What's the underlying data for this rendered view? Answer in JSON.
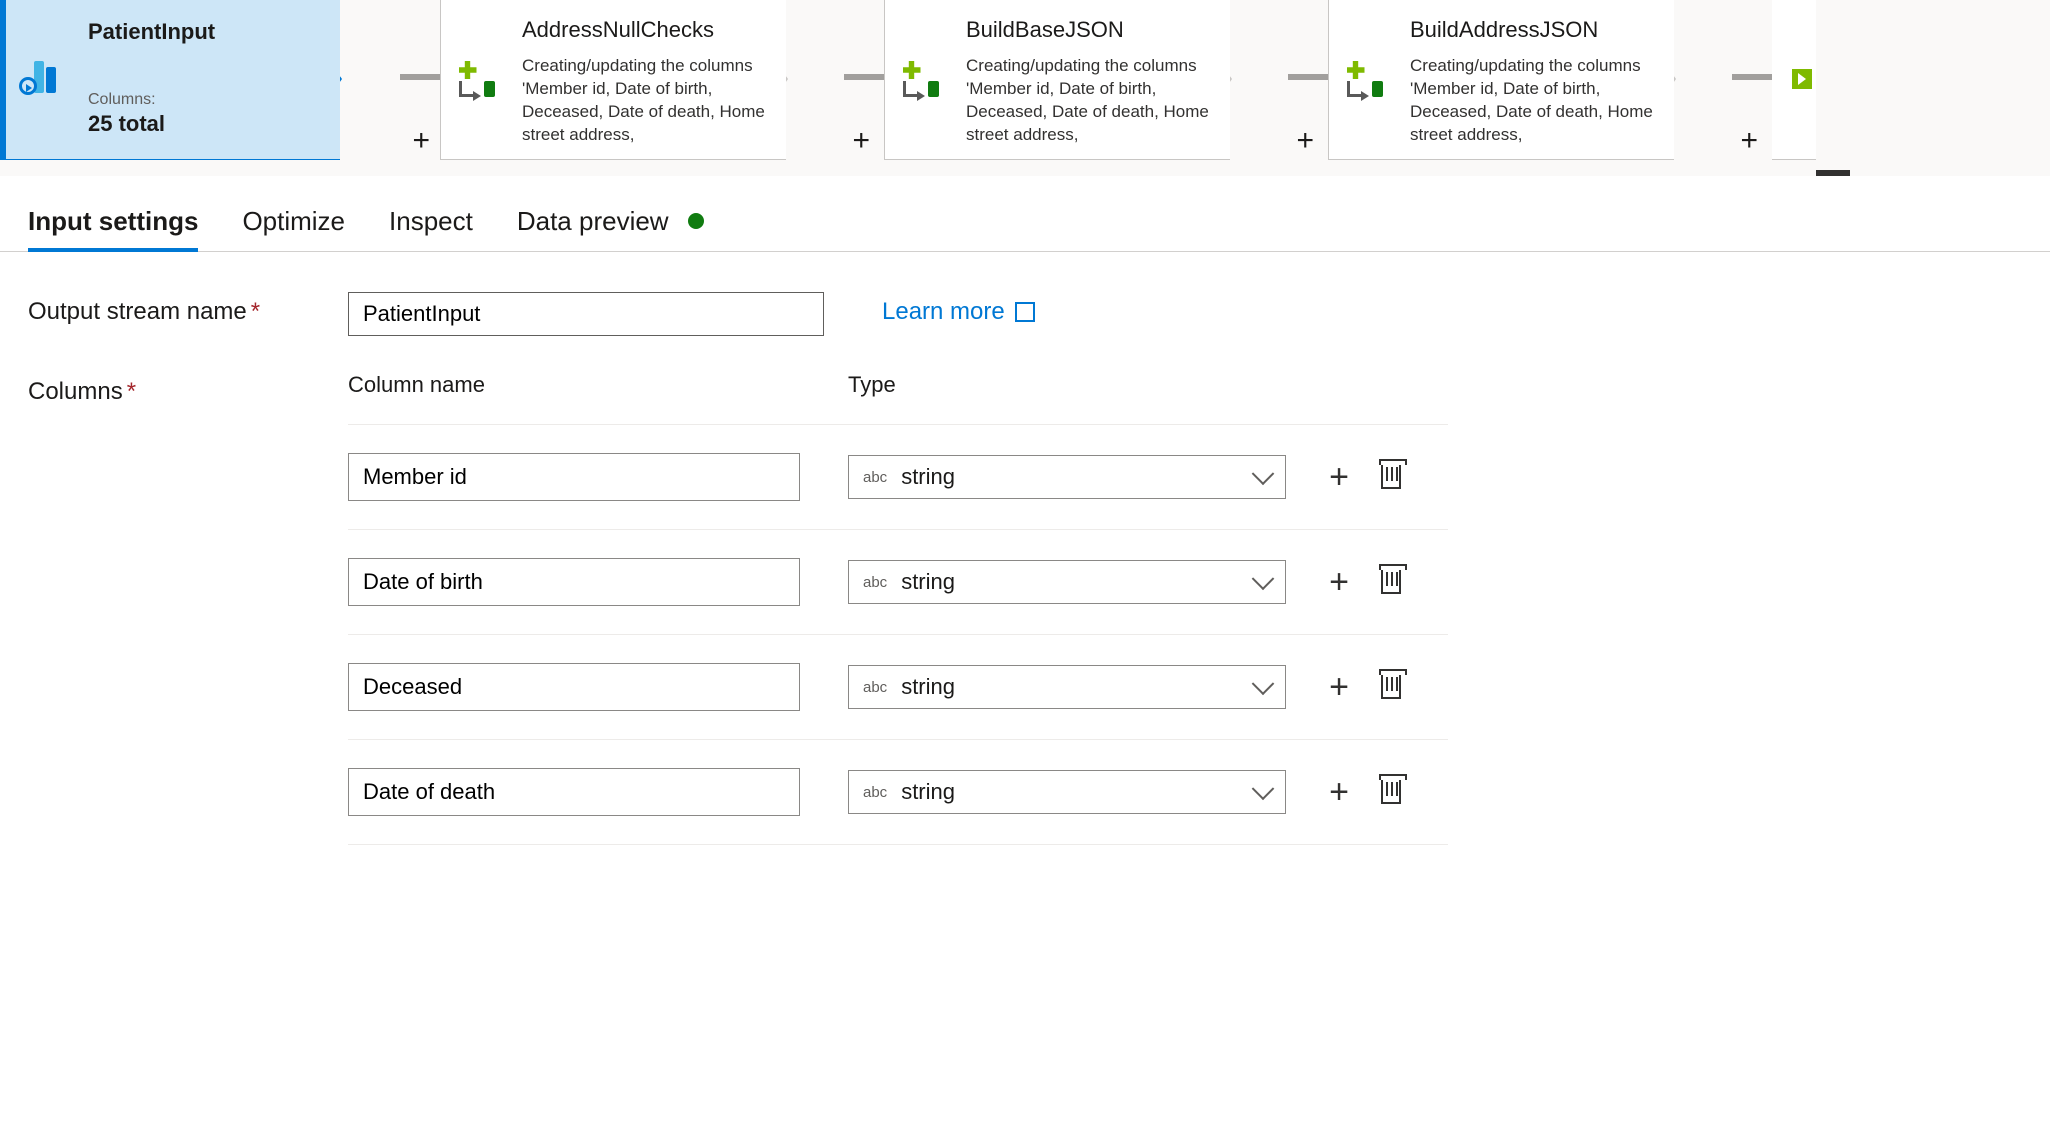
{
  "canvas": {
    "background": "#faf9f8",
    "sourceNode": {
      "title": "PatientInput",
      "columnsLabel": "Columns:",
      "columnsValue": "25 total",
      "selected": true,
      "accentColor": "#0078d4",
      "fillColor": "#cde6f7"
    },
    "transforms": [
      {
        "title": "AddressNullChecks",
        "desc": "Creating/updating the columns 'Member id, Date of birth, Deceased, Date of death, Home street address,"
      },
      {
        "title": "BuildBaseJSON",
        "desc": "Creating/updating the columns 'Member id, Date of birth, Deceased, Date of death, Home street address,"
      },
      {
        "title": "BuildAddressJSON",
        "desc": "Creating/updating the columns 'Member id, Date of birth, Deceased, Date of death, Home street address,"
      }
    ]
  },
  "tabs": {
    "items": [
      {
        "label": "Input settings",
        "active": true
      },
      {
        "label": "Optimize",
        "active": false
      },
      {
        "label": "Inspect",
        "active": false
      },
      {
        "label": "Data preview",
        "active": false,
        "status": "green"
      }
    ],
    "statusColor": "#107c10",
    "activeUnderline": "#0078d4"
  },
  "form": {
    "outputStreamLabel": "Output stream name",
    "outputStreamValue": "PatientInput",
    "learnMore": "Learn more",
    "columnsLabel": "Columns",
    "headers": {
      "name": "Column name",
      "type": "Type"
    },
    "typeTag": "abc",
    "rows": [
      {
        "name": "Member id",
        "type": "string"
      },
      {
        "name": "Date of birth",
        "type": "string"
      },
      {
        "name": "Deceased",
        "type": "string"
      },
      {
        "name": "Date of death",
        "type": "string"
      }
    ]
  }
}
